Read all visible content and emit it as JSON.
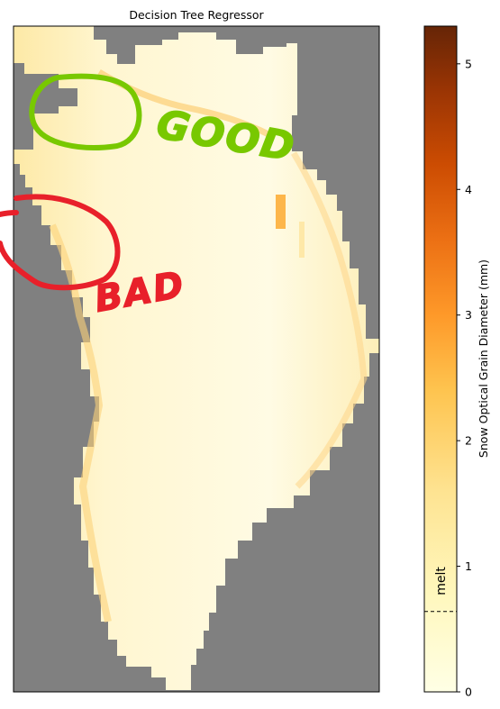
{
  "chart_data": {
    "type": "heatmap",
    "title": "Decision Tree Regressor",
    "map": {
      "background_color": "#808080",
      "description_colors": {
        "land_light": "#fffbe0",
        "land_mid": "#fee9a8",
        "land_warm": "#fcbf5a"
      }
    },
    "colorbar": {
      "label": "Snow Optical Grain Diameter (mm)",
      "range": [
        0,
        5.3
      ],
      "ticks": [
        0,
        1,
        2,
        3,
        4,
        5
      ],
      "tick_labels": [
        "0",
        "1",
        "2",
        "3",
        "4",
        "5"
      ],
      "colormap_stops": [
        {
          "value": 0.0,
          "color": "#ffffe5"
        },
        {
          "value": 0.8,
          "color": "#fff7bc"
        },
        {
          "value": 1.6,
          "color": "#fee391"
        },
        {
          "value": 2.4,
          "color": "#fec44f"
        },
        {
          "value": 3.0,
          "color": "#fe9929"
        },
        {
          "value": 3.6,
          "color": "#ec7014"
        },
        {
          "value": 4.2,
          "color": "#cc4c02"
        },
        {
          "value": 4.8,
          "color": "#993404"
        },
        {
          "value": 5.3,
          "color": "#662506"
        }
      ],
      "threshold": {
        "value": 0.64,
        "label": "melt",
        "style": "dashed"
      }
    },
    "annotations": [
      {
        "text": "GOOD",
        "color": "#78c800"
      },
      {
        "text": "BAD",
        "color": "#e8202a"
      }
    ]
  }
}
